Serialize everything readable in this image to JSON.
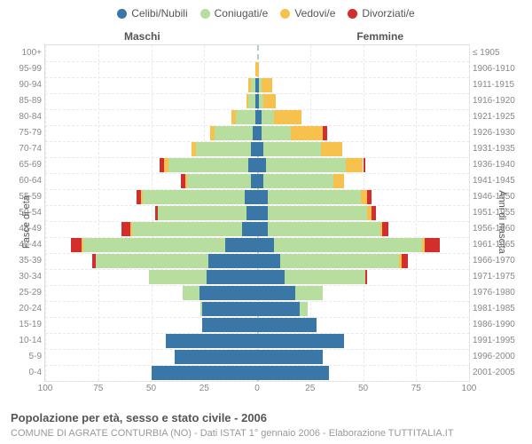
{
  "type": "population-pyramid",
  "legend": [
    {
      "label": "Celibi/Nubili",
      "color": "#3a76a6"
    },
    {
      "label": "Coniugati/e",
      "color": "#b7dd9f"
    },
    {
      "label": "Vedovi/e",
      "color": "#f6c24d"
    },
    {
      "label": "Divorziati/e",
      "color": "#d22e2e"
    }
  ],
  "colors": {
    "celibi": "#3a76a6",
    "coniugati": "#b7dd9f",
    "vedovi": "#f6c24d",
    "divorziati": "#d22e2e",
    "grid": "#e9e9e9",
    "center": "#bfcfd7",
    "text": "#555555",
    "border": "#dddddd",
    "bg": "#ffffff"
  },
  "side_labels": {
    "left": "Maschi",
    "right": "Femmine"
  },
  "y_axis_left_title": "Fasce di età",
  "y_axis_right_title": "Anni di nascita",
  "x_axis": {
    "max": 100,
    "ticks": [
      100,
      75,
      50,
      25,
      0,
      25,
      50,
      75,
      100
    ]
  },
  "title": "Popolazione per età, sesso e stato civile - 2006",
  "subtitle": "COMUNE DI AGRATE CONTURBIA (NO) - Dati ISTAT 1° gennaio 2006 - Elaborazione TUTTITALIA.IT",
  "font": {
    "legend_size": 12,
    "label_size": 10,
    "title_size": 13,
    "subtitle_size": 11
  },
  "rows": [
    {
      "age": "100+",
      "birth": "≤ 1905",
      "m": {
        "c": 0,
        "co": 0,
        "v": 0,
        "d": 0
      },
      "f": {
        "c": 0,
        "co": 0,
        "v": 0,
        "d": 0
      }
    },
    {
      "age": "95-99",
      "birth": "1906-1910",
      "m": {
        "c": 0,
        "co": 0,
        "v": 1,
        "d": 0
      },
      "f": {
        "c": 0,
        "co": 0,
        "v": 1,
        "d": 0
      }
    },
    {
      "age": "90-94",
      "birth": "1911-1915",
      "m": {
        "c": 1,
        "co": 2,
        "v": 1,
        "d": 0
      },
      "f": {
        "c": 1,
        "co": 1,
        "v": 5,
        "d": 0
      }
    },
    {
      "age": "85-89",
      "birth": "1916-1920",
      "m": {
        "c": 1,
        "co": 3,
        "v": 1,
        "d": 0
      },
      "f": {
        "c": 1,
        "co": 2,
        "v": 6,
        "d": 0
      }
    },
    {
      "age": "80-84",
      "birth": "1921-1925",
      "m": {
        "c": 1,
        "co": 9,
        "v": 2,
        "d": 0
      },
      "f": {
        "c": 2,
        "co": 6,
        "v": 13,
        "d": 0
      }
    },
    {
      "age": "75-79",
      "birth": "1926-1930",
      "m": {
        "c": 2,
        "co": 18,
        "v": 2,
        "d": 0
      },
      "f": {
        "c": 2,
        "co": 14,
        "v": 15,
        "d": 2
      }
    },
    {
      "age": "70-74",
      "birth": "1931-1935",
      "m": {
        "c": 3,
        "co": 26,
        "v": 2,
        "d": 0
      },
      "f": {
        "c": 3,
        "co": 27,
        "v": 10,
        "d": 0
      }
    },
    {
      "age": "65-69",
      "birth": "1936-1940",
      "m": {
        "c": 4,
        "co": 38,
        "v": 2,
        "d": 2
      },
      "f": {
        "c": 4,
        "co": 38,
        "v": 8,
        "d": 1
      }
    },
    {
      "age": "60-64",
      "birth": "1941-1945",
      "m": {
        "c": 3,
        "co": 30,
        "v": 1,
        "d": 2
      },
      "f": {
        "c": 3,
        "co": 33,
        "v": 5,
        "d": 0
      }
    },
    {
      "age": "55-59",
      "birth": "1946-1950",
      "m": {
        "c": 6,
        "co": 48,
        "v": 1,
        "d": 2
      },
      "f": {
        "c": 5,
        "co": 44,
        "v": 3,
        "d": 2
      }
    },
    {
      "age": "50-54",
      "birth": "1951-1955",
      "m": {
        "c": 5,
        "co": 42,
        "v": 0,
        "d": 1
      },
      "f": {
        "c": 5,
        "co": 47,
        "v": 2,
        "d": 2
      }
    },
    {
      "age": "45-49",
      "birth": "1956-1960",
      "m": {
        "c": 7,
        "co": 52,
        "v": 1,
        "d": 4
      },
      "f": {
        "c": 5,
        "co": 53,
        "v": 1,
        "d": 3
      }
    },
    {
      "age": "40-44",
      "birth": "1961-1965",
      "m": {
        "c": 15,
        "co": 67,
        "v": 1,
        "d": 5
      },
      "f": {
        "c": 8,
        "co": 70,
        "v": 1,
        "d": 7
      }
    },
    {
      "age": "35-39",
      "birth": "1966-1970",
      "m": {
        "c": 23,
        "co": 53,
        "v": 0,
        "d": 2
      },
      "f": {
        "c": 11,
        "co": 56,
        "v": 1,
        "d": 3
      }
    },
    {
      "age": "30-34",
      "birth": "1971-1975",
      "m": {
        "c": 24,
        "co": 27,
        "v": 0,
        "d": 0
      },
      "f": {
        "c": 13,
        "co": 38,
        "v": 0,
        "d": 1
      }
    },
    {
      "age": "25-29",
      "birth": "1976-1980",
      "m": {
        "c": 27,
        "co": 8,
        "v": 0,
        "d": 0
      },
      "f": {
        "c": 18,
        "co": 13,
        "v": 0,
        "d": 0
      }
    },
    {
      "age": "20-24",
      "birth": "1981-1985",
      "m": {
        "c": 26,
        "co": 1,
        "v": 0,
        "d": 0
      },
      "f": {
        "c": 20,
        "co": 4,
        "v": 0,
        "d": 0
      }
    },
    {
      "age": "15-19",
      "birth": "1986-1990",
      "m": {
        "c": 26,
        "co": 0,
        "v": 0,
        "d": 0
      },
      "f": {
        "c": 28,
        "co": 0,
        "v": 0,
        "d": 0
      }
    },
    {
      "age": "10-14",
      "birth": "1991-1995",
      "m": {
        "c": 43,
        "co": 0,
        "v": 0,
        "d": 0
      },
      "f": {
        "c": 41,
        "co": 0,
        "v": 0,
        "d": 0
      }
    },
    {
      "age": "5-9",
      "birth": "1996-2000",
      "m": {
        "c": 39,
        "co": 0,
        "v": 0,
        "d": 0
      },
      "f": {
        "c": 31,
        "co": 0,
        "v": 0,
        "d": 0
      }
    },
    {
      "age": "0-4",
      "birth": "2001-2005",
      "m": {
        "c": 50,
        "co": 0,
        "v": 0,
        "d": 0
      },
      "f": {
        "c": 34,
        "co": 0,
        "v": 0,
        "d": 0
      }
    }
  ]
}
